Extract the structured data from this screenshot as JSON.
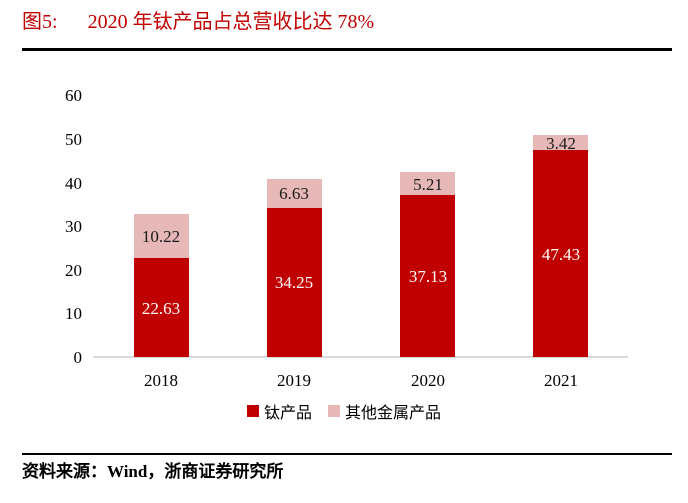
{
  "header": {
    "figure_label": "图5:"
  },
  "chart_data": {
    "type": "bar",
    "stacked": true,
    "title": "2020 年钛产品占总营收比达 78%",
    "categories": [
      "2018",
      "2019",
      "2020",
      "2021"
    ],
    "series": [
      {
        "name": "钛产品",
        "color": "#c00000",
        "label_color": "#ffffff",
        "values": [
          22.63,
          34.25,
          37.13,
          47.43
        ]
      },
      {
        "name": "其他金属产品",
        "color": "#e6b8b7",
        "label_color": "#1a1a1a",
        "values": [
          10.22,
          6.63,
          5.21,
          3.42
        ]
      }
    ],
    "ylim": [
      0,
      60
    ],
    "yticks": [
      0,
      10,
      20,
      30,
      40,
      50,
      60
    ],
    "grid": false,
    "legend_position": "bottom",
    "axis_line_color": "#d9d9d9"
  },
  "source": {
    "text": "资料来源：Wind，浙商证券研究所"
  }
}
